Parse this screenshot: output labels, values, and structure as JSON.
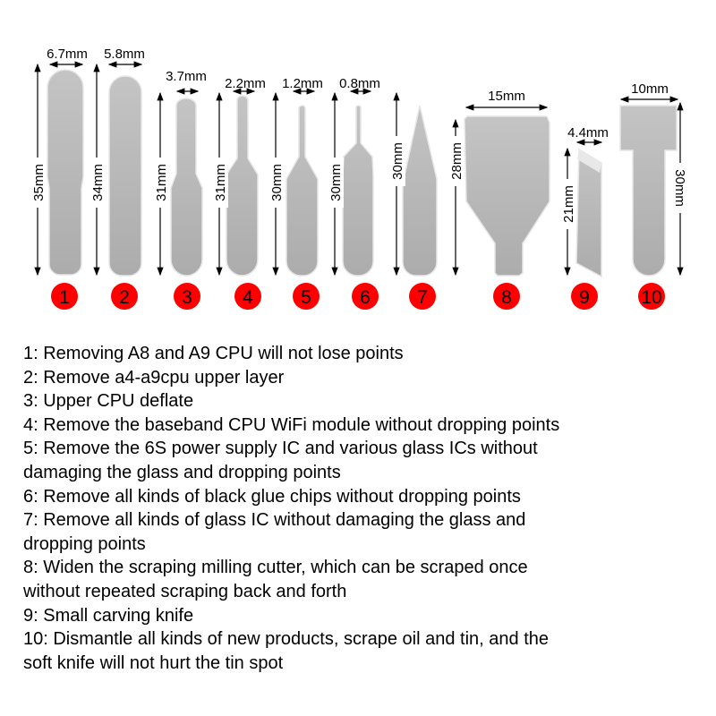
{
  "tools": [
    {
      "number": "1",
      "width": "6.7mm",
      "height": "35mm"
    },
    {
      "number": "2",
      "width": "5.8mm",
      "height": "34mm"
    },
    {
      "number": "3",
      "width": "3.7mm",
      "height": "31mm"
    },
    {
      "number": "4",
      "width": "2.2mm",
      "height": "31mm"
    },
    {
      "number": "5",
      "width": "1.2mm",
      "height": "30mm"
    },
    {
      "number": "6",
      "width": "0.8mm",
      "height": "30mm"
    },
    {
      "number": "7",
      "height": "30mm"
    },
    {
      "number": "8",
      "width": "15mm",
      "height": "28mm"
    },
    {
      "number": "9",
      "width": "4.4mm",
      "height": "21mm"
    },
    {
      "number": "10",
      "width": "10mm",
      "height": "30mm"
    }
  ],
  "colors": {
    "badge": "#ff0000",
    "steel": "#b8b8b8"
  },
  "descriptions": [
    [
      "1: Removing A8 and A9 CPU will not lose points"
    ],
    [
      "2: Remove a4-a9cpu upper layer"
    ],
    [
      "3: Upper CPU deflate"
    ],
    [
      "4: Remove the baseband CPU WiFi module without dropping points"
    ],
    [
      "5: Remove the 6S power supply IC and various glass ICs without",
      "damaging the glass and dropping points"
    ],
    [
      "6: Remove all kinds of black glue chips without dropping points"
    ],
    [
      "7:  Remove all kinds of glass IC without damaging the glass and",
      "dropping points"
    ],
    [
      "8: Widen the scraping milling cutter, which can be scraped once",
      "without repeated scraping back and forth"
    ],
    [
      "9: Small carving knife"
    ],
    [
      "10: Dismantle all kinds of new products, scrape oil and tin, and the",
      "soft knife will not hurt the tin spot"
    ]
  ]
}
